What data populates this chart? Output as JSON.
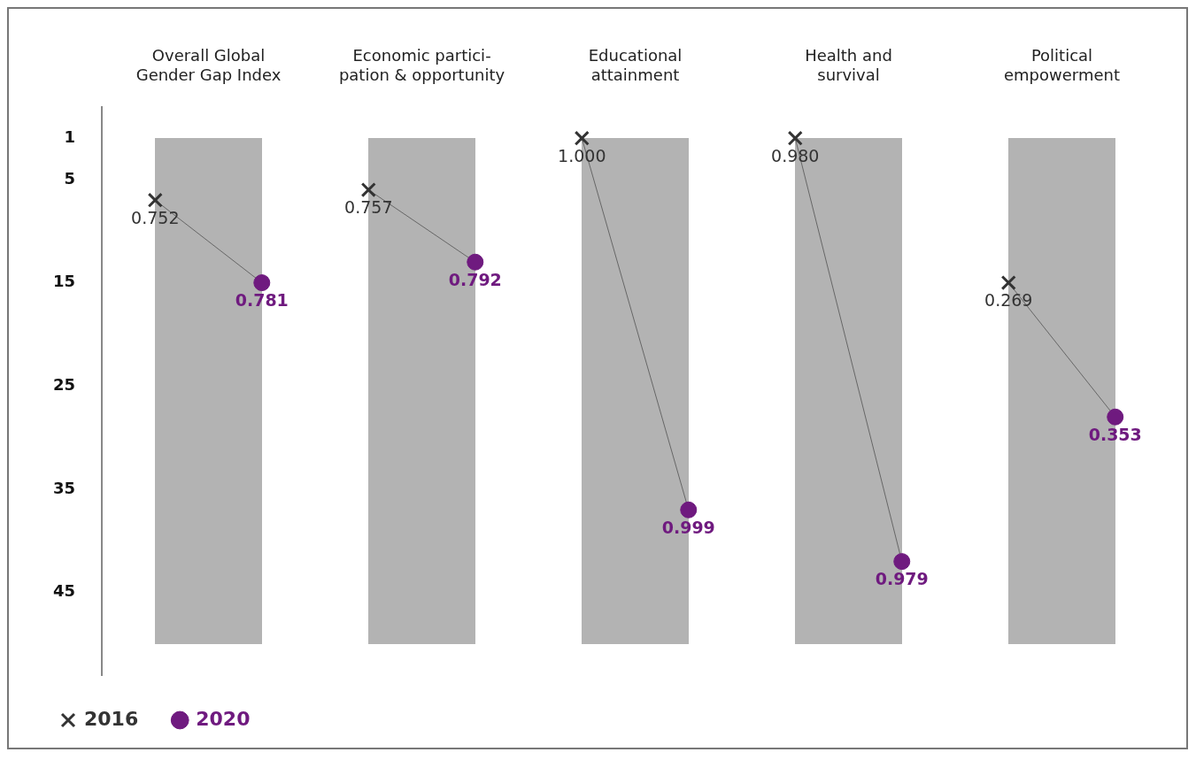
{
  "chart_data": {
    "type": "scatter",
    "categories": [
      "Overall Global\nGender Gap Index",
      "Economic partici-\npation & opportunity",
      "Educational\nattainment",
      "Health and\nsurvival",
      "Political\nempowerment"
    ],
    "series": [
      {
        "name": "2016",
        "color": "#333333",
        "marker": "cross",
        "values": [
          7,
          6,
          1,
          1,
          15
        ]
      },
      {
        "name": "2020",
        "color": "#6f1a7f",
        "marker": "circle",
        "values": [
          15,
          13,
          37,
          42,
          28
        ]
      }
    ],
    "annotations": [
      {
        "text": "0.752",
        "y": 7
      },
      {
        "text": "0.757",
        "y": 6
      },
      {
        "text": "1.000",
        "y": 1
      },
      {
        "text": "0.980",
        "y": 1
      },
      {
        "text": "0.269",
        "y": 15
      },
      {
        "text": "0.781",
        "y": 15
      },
      {
        "text": "0.792",
        "y": 13
      },
      {
        "text": "0.999",
        "y": 37
      },
      {
        "text": "0.979",
        "y": 42
      },
      {
        "text": "0.353",
        "y": 28
      }
    ],
    "ylim": [
      53,
      -2
    ],
    "yticks": [
      1,
      5,
      15,
      25,
      35,
      45
    ],
    "grid": false,
    "legend": "bottom left"
  }
}
